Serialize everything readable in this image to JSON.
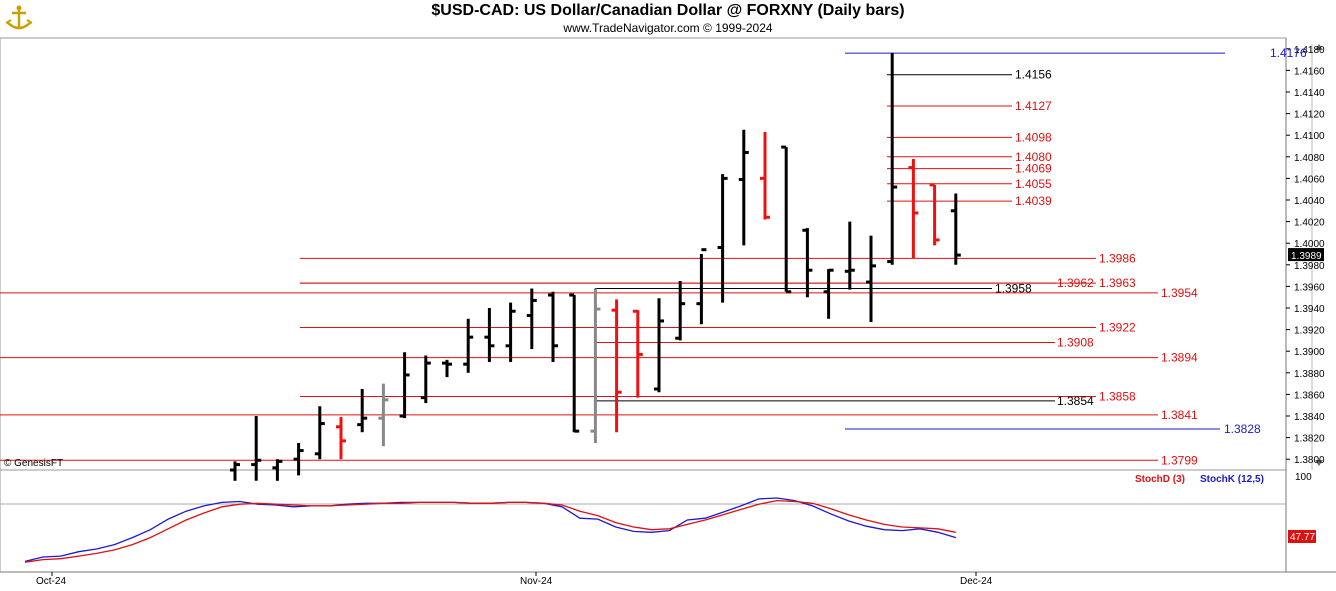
{
  "header": {
    "title": "$USD-CAD:  US Dollar/Canadian Dollar @ FORXNY  (Daily bars)",
    "subtitle": "www.TradeNavigator.com © 1999-2024",
    "copyright": "© GenesisFT",
    "logo_icon": "anchor-ship-icon"
  },
  "colors": {
    "up": "#000000",
    "down": "#ee1111",
    "neutral": "#888888",
    "level_red": "#e01010",
    "level_blue": "#1a1ad0",
    "stoch_k": "#1a1ad0",
    "stoch_d": "#e01010"
  },
  "chart_data": [
    {
      "type": "ohlc",
      "title": "$USD-CAD:  US Dollar/Canadian Dollar @ FORXNY  (Daily bars)",
      "x_tick_labels": [
        "Oct-24",
        "Nov-24",
        "Dec-24"
      ],
      "ylim": [
        1.379,
        1.419
      ],
      "y_ticks": [
        1.418,
        1.416,
        1.414,
        1.412,
        1.41,
        1.408,
        1.406,
        1.404,
        1.402,
        1.4,
        1.398,
        1.396,
        1.394,
        1.392,
        1.39,
        1.388,
        1.386,
        1.384,
        1.382,
        1.38
      ],
      "last_price": "1.3989",
      "bars": [
        {
          "high": 1.3798,
          "low": 1.378,
          "open": 1.379,
          "close": 1.3795,
          "color": "up"
        },
        {
          "high": 1.384,
          "low": 1.378,
          "open": 1.3795,
          "close": 1.3799,
          "color": "up"
        },
        {
          "high": 1.38,
          "low": 1.378,
          "open": 1.3792,
          "close": 1.3798,
          "color": "up"
        },
        {
          "high": 1.3815,
          "low": 1.3785,
          "open": 1.38,
          "close": 1.3808,
          "color": "up"
        },
        {
          "high": 1.3849,
          "low": 1.38,
          "open": 1.3805,
          "close": 1.3833,
          "color": "up"
        },
        {
          "high": 1.3839,
          "low": 1.38,
          "open": 1.383,
          "close": 1.3817,
          "color": "down"
        },
        {
          "high": 1.3865,
          "low": 1.3825,
          "open": 1.3832,
          "close": 1.3838,
          "color": "up"
        },
        {
          "high": 1.387,
          "low": 1.3812,
          "open": 1.3838,
          "close": 1.3855,
          "color": "neutral"
        },
        {
          "high": 1.3899,
          "low": 1.3838,
          "open": 1.384,
          "close": 1.3878,
          "color": "up"
        },
        {
          "high": 1.3896,
          "low": 1.3852,
          "open": 1.3857,
          "close": 1.3889,
          "color": "up"
        },
        {
          "high": 1.3892,
          "low": 1.3876,
          "open": 1.3889,
          "close": 1.3888,
          "color": "up"
        },
        {
          "high": 1.393,
          "low": 1.388,
          "open": 1.3888,
          "close": 1.3913,
          "color": "up"
        },
        {
          "high": 1.394,
          "low": 1.389,
          "open": 1.3913,
          "close": 1.3905,
          "color": "up"
        },
        {
          "high": 1.3945,
          "low": 1.389,
          "open": 1.3905,
          "close": 1.3937,
          "color": "up"
        },
        {
          "high": 1.3958,
          "low": 1.3902,
          "open": 1.3933,
          "close": 1.3947,
          "color": "up"
        },
        {
          "high": 1.3955,
          "low": 1.389,
          "open": 1.3952,
          "close": 1.3905,
          "color": "up"
        },
        {
          "high": 1.3952,
          "low": 1.3825,
          "open": 1.3952,
          "close": 1.3826,
          "color": "up"
        },
        {
          "high": 1.3958,
          "low": 1.3815,
          "open": 1.3826,
          "close": 1.3939,
          "color": "neutral"
        },
        {
          "high": 1.3948,
          "low": 1.3825,
          "open": 1.3938,
          "close": 1.3862,
          "color": "down"
        },
        {
          "high": 1.3938,
          "low": 1.3857,
          "open": 1.3937,
          "close": 1.3897,
          "color": "down"
        },
        {
          "high": 1.3949,
          "low": 1.3862,
          "open": 1.3865,
          "close": 1.3928,
          "color": "up"
        },
        {
          "high": 1.3965,
          "low": 1.391,
          "open": 1.3912,
          "close": 1.3944,
          "color": "up"
        },
        {
          "high": 1.399,
          "low": 1.3925,
          "open": 1.3944,
          "close": 1.3994,
          "color": "up"
        },
        {
          "high": 1.4064,
          "low": 1.3945,
          "open": 1.3996,
          "close": 1.406,
          "color": "up"
        },
        {
          "high": 1.4105,
          "low": 1.3998,
          "open": 1.4059,
          "close": 1.4084,
          "color": "up"
        },
        {
          "high": 1.4103,
          "low": 1.4022,
          "open": 1.406,
          "close": 1.4024,
          "color": "down"
        },
        {
          "high": 1.4089,
          "low": 1.3955,
          "open": 1.4089,
          "close": 1.3955,
          "color": "up"
        },
        {
          "high": 1.4014,
          "low": 1.395,
          "open": 1.4012,
          "close": 1.3975,
          "color": "up"
        },
        {
          "high": 1.3976,
          "low": 1.393,
          "open": 1.3955,
          "close": 1.3975,
          "color": "up"
        },
        {
          "high": 1.402,
          "low": 1.3957,
          "open": 1.3974,
          "close": 1.3975,
          "color": "up"
        },
        {
          "high": 1.4007,
          "low": 1.3927,
          "open": 1.3964,
          "close": 1.3979,
          "color": "up"
        },
        {
          "high": 1.4176,
          "low": 1.398,
          "open": 1.3983,
          "close": 1.4052,
          "color": "up"
        },
        {
          "high": 1.4078,
          "low": 1.3986,
          "open": 1.407,
          "close": 1.4028,
          "color": "down"
        },
        {
          "high": 1.4054,
          "low": 1.3998,
          "open": 1.4054,
          "close": 1.4003,
          "color": "down"
        },
        {
          "high": 1.4046,
          "low": 1.398,
          "open": 1.403,
          "close": 1.3989,
          "color": "up"
        }
      ],
      "level_lines": [
        {
          "value": 1.4176,
          "label": "1.4176",
          "color": "blue"
        },
        {
          "value": 1.4156,
          "label": "1.4156",
          "color": "black"
        },
        {
          "value": 1.4127,
          "label": "1.4127",
          "color": "red"
        },
        {
          "value": 1.4098,
          "label": "1.4098",
          "color": "red"
        },
        {
          "value": 1.408,
          "label": "1.4080",
          "color": "red"
        },
        {
          "value": 1.4069,
          "label": "1.4069",
          "color": "red"
        },
        {
          "value": 1.4055,
          "label": "1.4055",
          "color": "red"
        },
        {
          "value": 1.4039,
          "label": "1.4039",
          "color": "red"
        },
        {
          "value": 1.3986,
          "label": "1.3986",
          "color": "red"
        },
        {
          "value": 1.3963,
          "label": "1.3963",
          "color": "red"
        },
        {
          "value": 1.3962,
          "label": "1.3962",
          "color": "red"
        },
        {
          "value": 1.3958,
          "label": "1.3958",
          "color": "black"
        },
        {
          "value": 1.3954,
          "label": "1.3954",
          "color": "red"
        },
        {
          "value": 1.3922,
          "label": "1.3922",
          "color": "red"
        },
        {
          "value": 1.3908,
          "label": "1.3908",
          "color": "red"
        },
        {
          "value": 1.3894,
          "label": "1.3894",
          "color": "red"
        },
        {
          "value": 1.3858,
          "label": "1.3858",
          "color": "red"
        },
        {
          "value": 1.3854,
          "label": "1.3854",
          "color": "black"
        },
        {
          "value": 1.3841,
          "label": "1.3841",
          "color": "red"
        },
        {
          "value": 1.3828,
          "label": "1.3828",
          "color": "blue"
        },
        {
          "value": 1.3799,
          "label": "1.3799",
          "color": "red"
        }
      ]
    },
    {
      "type": "line",
      "ylim": [
        0,
        100
      ],
      "y_tick_labels": [
        "100"
      ],
      "current_value_label": "47.77",
      "series": [
        {
          "name": "StochK (12,5)",
          "color": "blue",
          "values": [
            3,
            8,
            9,
            14,
            17,
            22,
            30,
            39,
            51,
            60,
            66,
            70,
            71,
            68,
            67,
            65,
            66,
            66,
            68,
            69,
            69,
            70,
            70,
            70,
            70,
            69,
            69,
            70,
            70,
            69,
            65,
            52,
            51,
            42,
            37,
            36,
            38,
            50,
            52,
            59,
            66,
            74,
            75,
            72,
            66,
            57,
            49,
            43,
            39,
            38,
            40,
            36,
            30
          ]
        },
        {
          "name": "StochD (3)",
          "color": "red",
          "values": [
            2,
            5,
            6,
            9,
            12,
            16,
            22,
            30,
            40,
            50,
            58,
            65,
            68,
            69,
            68,
            67,
            66,
            66,
            67,
            68,
            69,
            69,
            70,
            70,
            70,
            69,
            69,
            70,
            70,
            69,
            67,
            60,
            55,
            47,
            42,
            39,
            40,
            45,
            50,
            56,
            62,
            68,
            72,
            71,
            69,
            63,
            56,
            50,
            45,
            42,
            41,
            40,
            36
          ]
        }
      ]
    }
  ]
}
